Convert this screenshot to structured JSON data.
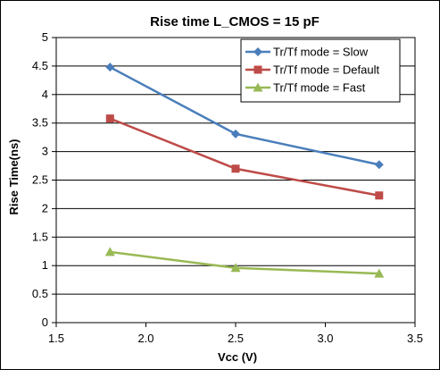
{
  "chart_data": {
    "type": "line",
    "title": "Rise time  L_CMOS = 15 pF",
    "xlabel": "Vcc (V)",
    "ylabel": "Rise Time(ns)",
    "xlim": [
      1.5,
      3.5
    ],
    "ylim": [
      0,
      5
    ],
    "x_ticks": [
      "1.5",
      "2.0",
      "2.5",
      "3.0",
      "3.5"
    ],
    "y_ticks": [
      "0",
      "0.5",
      "1",
      "1.5",
      "2",
      "2.5",
      "3",
      "3.5",
      "4",
      "4.5",
      "5"
    ],
    "grid": true,
    "legend_position": "top-right",
    "x": [
      1.8,
      2.5,
      3.3
    ],
    "series": [
      {
        "name": "Tr/Tf mode = Slow",
        "values": [
          4.48,
          3.31,
          2.77
        ],
        "color": "#4a7ebb",
        "marker": "diamond"
      },
      {
        "name": "Tr/Tf mode = Default",
        "values": [
          3.58,
          2.7,
          2.23
        ],
        "color": "#be4b48",
        "marker": "square"
      },
      {
        "name": "Tr/Tf mode = Fast",
        "values": [
          1.24,
          0.96,
          0.86
        ],
        "color": "#98b954",
        "marker": "triangle"
      }
    ]
  }
}
